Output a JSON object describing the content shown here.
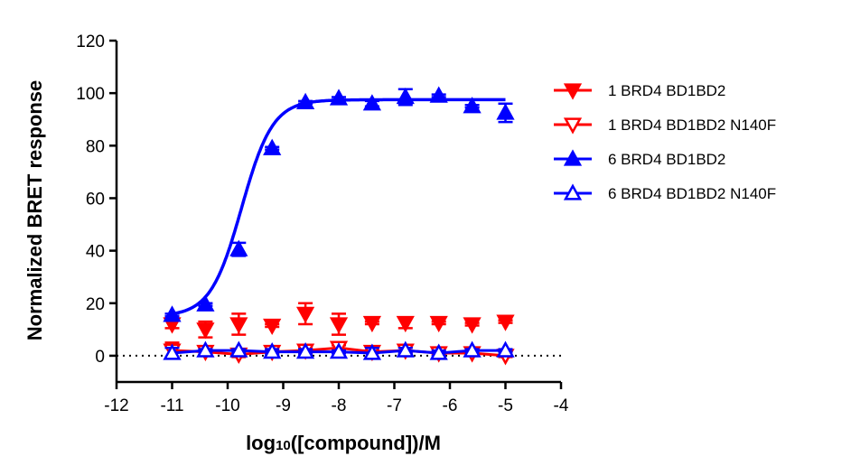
{
  "chart_data": {
    "type": "scatter",
    "title": "",
    "ylabel": "Normalized BRET response",
    "xlabel_prefix": "log",
    "xlabel_sub": "10",
    "xlabel_suffix": "([compound])/M",
    "xlim": [
      -12,
      -4
    ],
    "ylim": [
      -10,
      120
    ],
    "xticks": [
      -12,
      -11,
      -10,
      -9,
      -8,
      -7,
      -6,
      -5,
      -4
    ],
    "yticks": [
      0,
      20,
      40,
      60,
      80,
      100,
      120
    ],
    "reference_line_y": 0,
    "legend_position": "right",
    "x": [
      -11.0,
      -10.4,
      -9.8,
      -9.2,
      -8.6,
      -8.0,
      -7.4,
      -6.8,
      -6.2,
      -5.6,
      -5.0
    ],
    "series": [
      {
        "name": "1 BRD4 BD1BD2",
        "color": "#ff0000",
        "marker": "triangle-down-filled",
        "values": [
          12,
          10,
          12,
          11.5,
          16,
          12,
          12.5,
          12.5,
          12.5,
          12,
          13
        ],
        "errors": [
          1.5,
          3,
          4,
          0.5,
          4,
          4,
          0.5,
          2,
          0.5,
          0.5,
          0.5
        ]
      },
      {
        "name": "1 BRD4 BD1BD2 N140F",
        "color": "#ff0000",
        "marker": "triangle-down-open",
        "values": [
          2,
          1.5,
          0.5,
          1.5,
          2,
          3,
          1.5,
          2,
          1,
          1,
          0
        ],
        "errors": [
          3,
          1,
          1,
          0.5,
          1,
          1,
          0.5,
          1,
          0.5,
          0.5,
          0.5
        ]
      },
      {
        "name": "6 BRD4 BD1BD2",
        "color": "#0000ff",
        "marker": "triangle-up-filled",
        "values": [
          15.5,
          19.5,
          40.5,
          79,
          96.5,
          98,
          96,
          98.5,
          99,
          95,
          92.5
        ],
        "errors": [
          0.5,
          0.5,
          2.5,
          0.5,
          0.5,
          0.5,
          1,
          3,
          0.5,
          0.5,
          3.5
        ]
      },
      {
        "name": "6 BRD4 BD1BD2 N140F",
        "color": "#0000ff",
        "marker": "triangle-up-open",
        "values": [
          1,
          2,
          2,
          1.5,
          1.5,
          1.5,
          1,
          2,
          1,
          2,
          2
        ],
        "errors": [
          2,
          0.5,
          0.5,
          1,
          1,
          0.5,
          2,
          1,
          1,
          0.5,
          0.5
        ]
      }
    ]
  }
}
